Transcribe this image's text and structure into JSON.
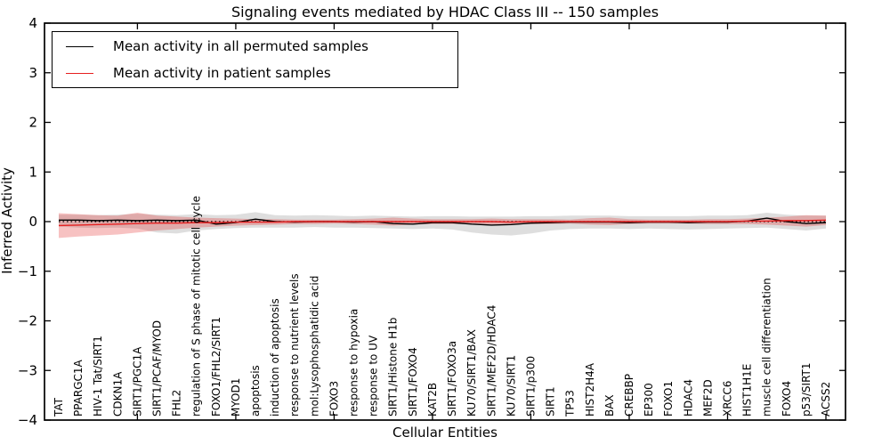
{
  "title": "Signaling events mediated by HDAC Class III -- 150 samples",
  "colors": {
    "permuted_line": "#000000",
    "patient_line": "#e62020",
    "permuted_band": "rgba(0,0,0,0.13)",
    "patient_band": "rgba(225,30,30,0.27)",
    "axis": "#000000"
  },
  "chart_data": {
    "type": "line",
    "title": "Signaling events mediated by HDAC Class III -- 150 samples",
    "xlabel": "Cellular Entities",
    "ylabel": "Inferred Activity",
    "ylim": [
      -4,
      4
    ],
    "grid": false,
    "legend_position": "upper-left",
    "yticks": [
      {
        "v": 4,
        "label": "4"
      },
      {
        "v": 3,
        "label": "3"
      },
      {
        "v": 2,
        "label": "2"
      },
      {
        "v": 1,
        "label": "1"
      },
      {
        "v": 0,
        "label": "0"
      },
      {
        "v": -1,
        "label": "−1"
      },
      {
        "v": -2,
        "label": "−2"
      },
      {
        "v": -3,
        "label": "−3"
      },
      {
        "v": -4,
        "label": "−4"
      }
    ],
    "xtick_indices": [
      4,
      9,
      14,
      19,
      24,
      29,
      34,
      39
    ],
    "zero_line": {
      "y": 0,
      "style": "dotted",
      "color": "#000000"
    },
    "categories": [
      "TAT",
      "PPARGC1A",
      "HIV-1 Tat/SIRT1",
      "CDKN1A",
      "SIRT1/PGC1A",
      "SIRT1/PCAF/MYOD",
      "FHL2",
      "regulation of S phase of mitotic cell cycle",
      "FOXO1/FHL2/SIRT1",
      "MYOD1",
      "apoptosis",
      "induction of apoptosis",
      "response to nutrient levels",
      "mol:Lysophosphatidic acid",
      "FOXO3",
      "response to hypoxia",
      "response to UV",
      "SIRT1/Histone H1b",
      "SIRT1/FOXO4",
      "KAT2B",
      "SIRT1/FOXO3a",
      "KU70/SIRT1/BAX",
      "SIRT1/MEF2D/HDAC4",
      "KU70/SIRT1",
      "SIRT1/p300",
      "SIRT1",
      "TP53",
      "HIST2H4A",
      "BAX",
      "CREBBP",
      "EP300",
      "FOXO1",
      "HDAC4",
      "MEF2D",
      "XRCC6",
      "HIST1H1E",
      "muscle cell differentiation",
      "FOXO4",
      "p53/SIRT1",
      "ACSS2"
    ],
    "series": [
      {
        "name": "Mean activity in all permuted samples",
        "color": "#000000",
        "band_color": "rgba(0,0,0,0.13)",
        "mean": [
          0.03,
          0.03,
          0.02,
          0.03,
          0.02,
          0.03,
          0.02,
          0.03,
          -0.05,
          -0.02,
          0.05,
          0.0,
          -0.01,
          0.0,
          0.0,
          -0.01,
          0.0,
          -0.04,
          -0.05,
          -0.02,
          -0.02,
          -0.05,
          -0.07,
          -0.06,
          -0.03,
          -0.02,
          -0.01,
          -0.01,
          -0.01,
          -0.02,
          -0.01,
          -0.01,
          -0.02,
          -0.01,
          -0.01,
          0.01,
          0.07,
          0.0,
          -0.04,
          -0.02
        ],
        "hi": [
          0.14,
          0.14,
          0.13,
          0.14,
          0.16,
          0.14,
          0.13,
          0.15,
          0.13,
          0.14,
          0.19,
          0.13,
          0.12,
          0.13,
          0.12,
          0.11,
          0.12,
          0.11,
          0.1,
          0.11,
          0.11,
          0.1,
          0.1,
          0.1,
          0.11,
          0.11,
          0.12,
          0.12,
          0.12,
          0.11,
          0.11,
          0.11,
          0.11,
          0.12,
          0.12,
          0.13,
          0.18,
          0.14,
          0.12,
          0.12
        ],
        "lo": [
          -0.1,
          -0.12,
          -0.13,
          -0.12,
          -0.14,
          -0.22,
          -0.24,
          -0.18,
          -0.15,
          -0.13,
          -0.12,
          -0.12,
          -0.12,
          -0.11,
          -0.12,
          -0.12,
          -0.13,
          -0.14,
          -0.15,
          -0.14,
          -0.16,
          -0.22,
          -0.26,
          -0.28,
          -0.24,
          -0.18,
          -0.15,
          -0.14,
          -0.14,
          -0.15,
          -0.14,
          -0.15,
          -0.16,
          -0.15,
          -0.14,
          -0.13,
          -0.12,
          -0.15,
          -0.18,
          -0.14
        ]
      },
      {
        "name": "Mean activity in patient samples",
        "color": "#e62020",
        "band_color": "rgba(225,30,30,0.27)",
        "mean": [
          -0.08,
          -0.07,
          -0.06,
          -0.05,
          -0.04,
          -0.03,
          -0.03,
          -0.02,
          -0.02,
          -0.01,
          -0.01,
          -0.01,
          0.0,
          0.0,
          0.0,
          0.0,
          0.0,
          0.0,
          0.0,
          0.0,
          0.0,
          0.0,
          0.0,
          -0.01,
          0.0,
          0.0,
          0.0,
          0.0,
          0.0,
          0.0,
          0.0,
          0.0,
          0.0,
          0.0,
          0.0,
          0.01,
          0.01,
          0.02,
          0.02,
          0.03
        ],
        "hi": [
          0.17,
          0.15,
          0.13,
          0.12,
          0.18,
          0.12,
          0.1,
          0.08,
          0.07,
          0.06,
          0.05,
          0.05,
          0.04,
          0.04,
          0.04,
          0.05,
          0.06,
          0.08,
          0.06,
          0.05,
          0.05,
          0.05,
          0.06,
          0.05,
          0.05,
          0.05,
          0.04,
          0.07,
          0.08,
          0.05,
          0.04,
          0.04,
          0.04,
          0.05,
          0.05,
          0.06,
          0.08,
          0.1,
          0.13,
          0.12
        ],
        "lo": [
          -0.33,
          -0.3,
          -0.28,
          -0.26,
          -0.22,
          -0.18,
          -0.15,
          -0.12,
          -0.1,
          -0.08,
          -0.07,
          -0.06,
          -0.05,
          -0.05,
          -0.04,
          -0.05,
          -0.06,
          -0.08,
          -0.06,
          -0.05,
          -0.05,
          -0.05,
          -0.06,
          -0.06,
          -0.05,
          -0.05,
          -0.04,
          -0.06,
          -0.07,
          -0.05,
          -0.04,
          -0.04,
          -0.04,
          -0.05,
          -0.05,
          -0.05,
          -0.06,
          -0.08,
          -0.1,
          -0.07
        ]
      }
    ]
  },
  "legend": {
    "entries": [
      {
        "label": "Mean activity in all permuted samples",
        "color": "#000000"
      },
      {
        "label": "Mean activity in patient samples",
        "color": "#e62020"
      }
    ]
  }
}
